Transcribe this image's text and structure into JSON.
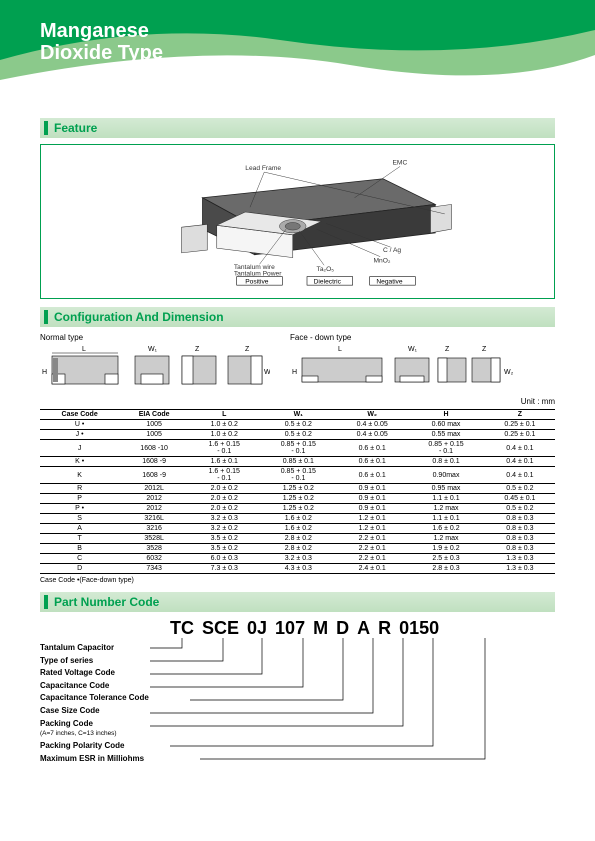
{
  "header": {
    "title_l1": "Manganese",
    "title_l2": "Dioxide Type"
  },
  "sections": {
    "feature": "Feature",
    "config": "Configuration And Dimension",
    "partnum": "Part Number Code"
  },
  "feature": {
    "callouts": {
      "leadframe": "Lead Frame",
      "emc": "EMC",
      "tantalum_wire": "Tantalum wire",
      "tantalum_power": "Tantalum Power",
      "ta2o5": "Ta₂O₅",
      "mno2": "MnO₂",
      "cag": "C / Ag"
    },
    "terminals": {
      "pos": "Positive",
      "di": "Dielectric",
      "neg": "Negative"
    }
  },
  "config": {
    "normal_label": "Normal type",
    "face_label": "Face - down type",
    "dims": {
      "L": "L",
      "W1": "W₁",
      "Z": "Z",
      "H": "H",
      "W2": "W₂"
    },
    "unit": "Unit : mm"
  },
  "table": {
    "headers": [
      "Case Code",
      "EIA Code",
      "L",
      "W₁",
      "W₂",
      "H",
      "Z"
    ],
    "rows": [
      [
        "U •",
        "1005",
        "1.0 ± 0.2",
        "0.5 ± 0.2",
        "0.4 ± 0.05",
        "0.60 max",
        "0.25 ± 0.1"
      ],
      [
        "J •",
        "1005",
        "1.0 ± 0.2",
        "0.5 ± 0.2",
        "0.4 ± 0.05",
        "0.55 max",
        "0.25 ± 0.1"
      ],
      [
        "J",
        "1608 -10",
        "1.6 + 0.15\n- 0.1",
        "0.85 + 0.15\n- 0.1",
        "0.6 ± 0.1",
        "0.85 + 0.15\n- 0.1",
        "0.4 ± 0.1"
      ],
      [
        "K •",
        "1608 -9",
        "1.6 ± 0.1",
        "0.85 ± 0.1",
        "0.6 ± 0.1",
        "0.8 ± 0.1",
        "0.4 ± 0.1"
      ],
      [
        "K",
        "1608 -9",
        "1.6 + 0.15\n- 0.1",
        "0.85 + 0.15\n- 0.1",
        "0.6 ± 0.1",
        "0.90max",
        "0.4 ± 0.1"
      ],
      [
        "R",
        "2012L",
        "2.0 ± 0.2",
        "1.25 ± 0.2",
        "0.9 ± 0.1",
        "0.95 max",
        "0.5 ± 0.2"
      ],
      [
        "P",
        "2012",
        "2.0 ± 0.2",
        "1.25 ± 0.2",
        "0.9 ± 0.1",
        "1.1 ± 0.1",
        "0.45 ± 0.1"
      ],
      [
        "P •",
        "2012",
        "2.0 ± 0.2",
        "1.25 ± 0.2",
        "0.9 ± 0.1",
        "1.2 max",
        "0.5 ± 0.2"
      ],
      [
        "S",
        "3216L",
        "3.2 ± 0.3",
        "1.6 ± 0.2",
        "1.2 ± 0.1",
        "1.1 ± 0.1",
        "0.8 ± 0.3"
      ],
      [
        "A",
        "3216",
        "3.2 ± 0.2",
        "1.6 ± 0.2",
        "1.2 ± 0.1",
        "1.6 ± 0.2",
        "0.8 ± 0.3"
      ],
      [
        "T",
        "3528L",
        "3.5 ± 0.2",
        "2.8 ± 0.2",
        "2.2 ± 0.1",
        "1.2 max",
        "0.8 ± 0.3"
      ],
      [
        "B",
        "3528",
        "3.5 ± 0.2",
        "2.8 ± 0.2",
        "2.2 ± 0.1",
        "1.9 ± 0.2",
        "0.8 ± 0.3"
      ],
      [
        "C",
        "6032",
        "6.0 ± 0.3",
        "3.2 ± 0.3",
        "2.2 ± 0.1",
        "2.5 ± 0.3",
        "1.3 ± 0.3"
      ],
      [
        "D",
        "7343",
        "7.3 ± 0.3",
        "4.3 ± 0.3",
        "2.4 ± 0.1",
        "2.8 ± 0.3",
        "1.3 ± 0.3"
      ]
    ],
    "note": "Case Code •(Face-down type)"
  },
  "partnum": {
    "segments": [
      "TC",
      "SCE",
      "0J",
      "107",
      "M",
      "D",
      "A",
      "R",
      "0150"
    ],
    "labels": [
      "Tantalum Capacitor",
      "Type of series",
      "Rated Voltage Code",
      "Capacitance Code",
      "Capacitance Tolerance Code",
      "Case Size Code",
      "Packing Code",
      "Packing Polarity Code",
      "Maximum ESR in Milliohms"
    ],
    "packing_sub": "(A=7 inches, C=13 inches)"
  },
  "colors": {
    "green": "#00a050",
    "green_light": "#d4ead4",
    "green_grad": "#8bc98b",
    "dark": "#3a3a3a",
    "mid": "#6a6a6a",
    "light": "#bbb"
  }
}
